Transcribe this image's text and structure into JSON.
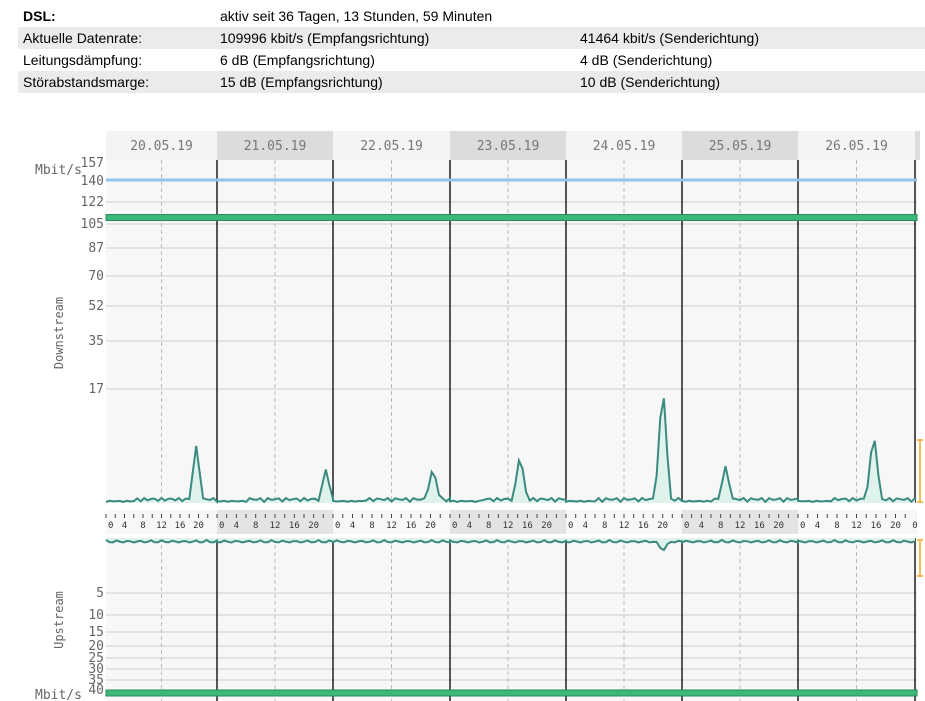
{
  "dsl_info": [
    {
      "label": "DSL:",
      "value": "aktiv seit 36 Tagen, 13 Stunden, 59 Minuten",
      "value2": ""
    },
    {
      "label": "Aktuelle Datenrate:",
      "value": "109996 kbit/s (Empfangsrichtung)",
      "value2": "41464 kbit/s (Senderichtung)"
    },
    {
      "label": "Leitungsdämpfung:",
      "value": "6 dB (Empfangsrichtung)",
      "value2": "4 dB (Senderichtung)"
    },
    {
      "label": "Störabstandsmarge:",
      "value": "15 dB (Empfangsrichtung)",
      "value2": "10 dB (Senderichtung)"
    }
  ],
  "chart_data": {
    "type": "line",
    "dates": [
      "20.05.19",
      "21.05.19",
      "22.05.19",
      "23.05.19",
      "24.05.19",
      "25.05.19",
      "26.05.19"
    ],
    "hour_ticks": [
      "4",
      "8",
      "12",
      "16",
      "20",
      "0"
    ],
    "downstream": {
      "axis_label": "Downstream",
      "unit": "Mbit/s",
      "ticks": [
        "157",
        "140",
        "122",
        "105",
        "87",
        "70",
        "52",
        "35",
        "17"
      ],
      "max_attainable": 141,
      "current_rate": 110,
      "usage_peaks": [
        {
          "day": 0,
          "hour": 19.5,
          "value": 8.5
        },
        {
          "day": 1,
          "hour": 22.5,
          "value": 5.0
        },
        {
          "day": 2,
          "hour": 20.5,
          "value": 5.5
        },
        {
          "day": 3,
          "hour": 14.5,
          "value": 7.5
        },
        {
          "day": 4,
          "hour": 20.0,
          "value": 18.5
        },
        {
          "day": 5,
          "hour": 9.0,
          "value": 5.5
        },
        {
          "day": 6,
          "hour": 15.5,
          "value": 11.0
        }
      ]
    },
    "upstream": {
      "axis_label": "Upstream",
      "unit": "Mbit/s",
      "ticks": [
        "5",
        "10",
        "15",
        "20",
        "25",
        "30",
        "35",
        "40"
      ],
      "current_rate": 41
    },
    "colors": {
      "max_line": "#8fc4ec",
      "rate_band": "#3cb878",
      "usage_line": "#3a8a80",
      "usage_fill": "#dff2ec",
      "grid": "#cccccc",
      "day_sep": "#000000",
      "header_dark": "#dcdcdc",
      "header_light": "#f4f4f4",
      "marker": "#f5a623"
    }
  }
}
